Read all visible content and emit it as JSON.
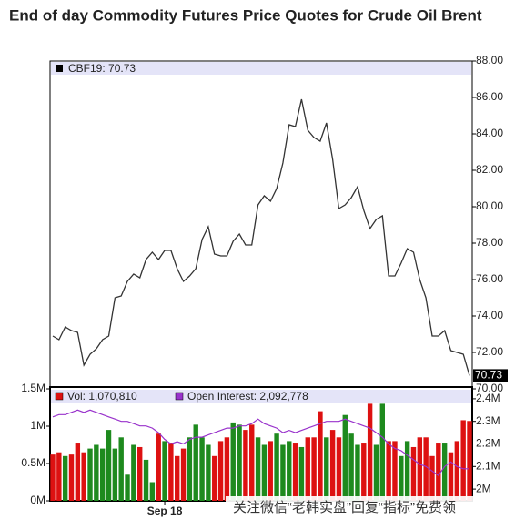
{
  "chart_data": [
    {
      "type": "line",
      "title": "End of day Commodity Futures Price Quotes for Crude Oil Brent",
      "legend_text": "CBF19: 70.73",
      "ylim": [
        70,
        88
      ],
      "yticks": [
        {
          "value": 70,
          "label": "70.00"
        },
        {
          "value": 72,
          "label": "72.00"
        },
        {
          "value": 74,
          "label": "74.00"
        },
        {
          "value": 76,
          "label": "76.00"
        },
        {
          "value": 78,
          "label": "78.00"
        },
        {
          "value": 80,
          "label": "80.00"
        },
        {
          "value": 82,
          "label": "82.00"
        },
        {
          "value": 84,
          "label": "84.00"
        },
        {
          "value": 86,
          "label": "86.00"
        },
        {
          "value": 88,
          "label": "88.00"
        }
      ],
      "series": [
        {
          "name": "CBF19",
          "color": "#333333",
          "values": [
            72.9,
            72.7,
            73.4,
            73.2,
            73.1,
            71.3,
            71.9,
            72.2,
            72.7,
            72.9,
            75.0,
            75.1,
            75.9,
            76.3,
            76.1,
            77.1,
            77.5,
            77.1,
            77.6,
            77.6,
            76.6,
            75.9,
            76.2,
            76.6,
            78.2,
            78.9,
            77.4,
            77.3,
            77.3,
            78.1,
            78.5,
            77.9,
            77.9,
            80.1,
            80.6,
            80.3,
            81.0,
            82.4,
            84.5,
            84.4,
            85.9,
            84.2,
            83.8,
            83.6,
            84.6,
            82.6,
            79.9,
            80.1,
            80.5,
            81.1,
            79.8,
            78.8,
            79.3,
            79.5,
            76.2,
            76.2,
            76.9,
            77.7,
            77.5,
            76.0,
            75.0,
            72.9,
            72.9,
            73.2,
            72.1,
            72.0,
            71.9,
            70.73
          ]
        }
      ]
    },
    {
      "type": "bar",
      "categories": [
        null,
        null,
        null,
        null,
        null,
        null,
        null,
        null,
        null,
        null,
        null,
        null,
        null,
        null,
        null,
        null,
        null,
        null,
        "Sep 18",
        null,
        null,
        null,
        null,
        null,
        null,
        null,
        null,
        null,
        null,
        null,
        null,
        null,
        null,
        null,
        null,
        null,
        null,
        null,
        null,
        null,
        null,
        null,
        null,
        null,
        null,
        null,
        null,
        null,
        null,
        null,
        null,
        null,
        null,
        null,
        null,
        null,
        null,
        null,
        null,
        null,
        null,
        null,
        null,
        null,
        null,
        null,
        null,
        null
      ],
      "ylim": [
        0,
        1.5
      ],
      "yticks": [
        {
          "value": 0,
          "label": "0M"
        },
        {
          "value": 0.5,
          "label": "0.5M"
        },
        {
          "value": 1,
          "label": "1M"
        },
        {
          "value": 1.5,
          "label": "1.5M"
        }
      ],
      "y2lim": [
        1.948,
        2.444
      ],
      "y2ticks": [
        {
          "value": 2.0,
          "label": "2M"
        },
        {
          "value": 2.1,
          "label": "2.1M"
        },
        {
          "value": 2.2,
          "label": "2.2M"
        },
        {
          "value": 2.3,
          "label": "2.3M"
        },
        {
          "value": 2.4,
          "label": "2.4M"
        }
      ],
      "series": [
        {
          "name": "Vol: 1,070,810",
          "color": "#dd1111",
          "up_color": "#1e8a1e",
          "values": [
            0.62,
            0.65,
            0.6,
            0.62,
            0.78,
            0.65,
            0.7,
            0.75,
            0.7,
            0.95,
            0.7,
            0.85,
            0.35,
            0.75,
            0.72,
            0.55,
            0.25,
            0.9,
            0.8,
            0.78,
            0.6,
            0.7,
            0.85,
            1.02,
            0.85,
            0.75,
            0.6,
            0.8,
            0.85,
            1.05,
            1.02,
            0.95,
            1.02,
            0.85,
            0.75,
            0.8,
            0.9,
            0.75,
            0.8,
            0.78,
            0.72,
            0.85,
            0.85,
            1.2,
            0.85,
            0.95,
            0.85,
            1.15,
            0.9,
            0.75,
            0.78,
            1.3,
            0.75,
            1.3,
            0.8,
            0.8,
            0.6,
            0.8,
            0.72,
            0.85,
            0.85,
            0.6,
            0.78,
            0.78,
            0.65,
            0.8,
            1.08,
            1.07
          ]
        },
        {
          "name": "Open Interest: 2,092,778",
          "color": "#9933cc",
          "axis": "y2",
          "values": [
            2.32,
            2.33,
            2.33,
            2.34,
            2.35,
            2.34,
            2.35,
            2.34,
            2.33,
            2.32,
            2.31,
            2.3,
            2.3,
            2.29,
            2.28,
            2.28,
            2.27,
            2.25,
            2.22,
            2.2,
            2.21,
            2.2,
            2.22,
            2.23,
            2.23,
            2.24,
            2.25,
            2.26,
            2.27,
            2.27,
            2.28,
            2.28,
            2.29,
            2.31,
            2.29,
            2.28,
            2.27,
            2.25,
            2.26,
            2.25,
            2.26,
            2.27,
            2.28,
            2.29,
            2.3,
            2.3,
            2.3,
            2.31,
            2.3,
            2.29,
            2.28,
            2.27,
            2.25,
            2.23,
            2.2,
            2.18,
            2.17,
            2.15,
            2.13,
            2.11,
            2.1,
            2.08,
            2.06,
            2.1,
            2.12,
            2.1,
            2.09,
            2.09
          ]
        }
      ]
    }
  ],
  "watermark": "关注微信“老韩实盘”回复“指标”免费领"
}
